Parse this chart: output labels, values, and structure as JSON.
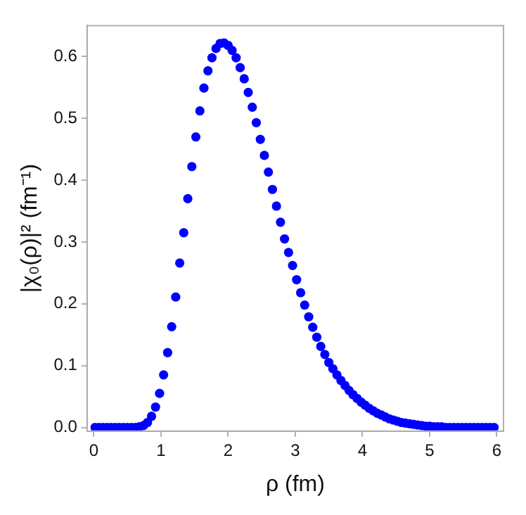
{
  "chart_data": {
    "type": "scatter",
    "xlabel": "ρ (fm)",
    "ylabel": "|χ₀(ρ)|² (fm⁻¹)",
    "xlim": [
      -0.1,
      6.1
    ],
    "xticks": [
      0,
      1,
      2,
      3,
      4,
      5,
      6
    ],
    "ylim": [
      -0.006,
      0.65
    ],
    "yticks": [
      {
        "value": 0,
        "label": "0.0"
      },
      0.1,
      0.2,
      0.3,
      0.4,
      0.5,
      0.6
    ],
    "grid": false,
    "legend": false,
    "marker": "circle",
    "series": [
      {
        "color": "#0000ff",
        "x": [
          0.02,
          0.08,
          0.14,
          0.2,
          0.26,
          0.32,
          0.38,
          0.44,
          0.5,
          0.56,
          0.62,
          0.68,
          0.74,
          0.8,
          0.86,
          0.92,
          0.98,
          1.04,
          1.1,
          1.16,
          1.22,
          1.28,
          1.34,
          1.4,
          1.46,
          1.52,
          1.58,
          1.64,
          1.7,
          1.76,
          1.82,
          1.88,
          1.94,
          2.0,
          2.06,
          2.12,
          2.18,
          2.24,
          2.3,
          2.36,
          2.42,
          2.48,
          2.54,
          2.6,
          2.66,
          2.72,
          2.78,
          2.84,
          2.9,
          2.96,
          3.02,
          3.08,
          3.14,
          3.2,
          3.26,
          3.32,
          3.38,
          3.44,
          3.5,
          3.56,
          3.62,
          3.68,
          3.74,
          3.8,
          3.86,
          3.92,
          3.98,
          4.04,
          4.1,
          4.16,
          4.22,
          4.28,
          4.34,
          4.4,
          4.46,
          4.52,
          4.58,
          4.64,
          4.7,
          4.76,
          4.82,
          4.88,
          4.94,
          5.0,
          5.06,
          5.12,
          5.18,
          5.24,
          5.3,
          5.36,
          5.42,
          5.48,
          5.54,
          5.6,
          5.66,
          5.72,
          5.78,
          5.84,
          5.9,
          5.96
        ],
        "values": [
          0,
          0,
          0,
          0,
          0,
          0,
          0,
          0,
          0,
          0,
          0,
          0.001,
          0.003,
          0.008,
          0.018,
          0.033,
          0.055,
          0.085,
          0.121,
          0.163,
          0.211,
          0.266,
          0.315,
          0.37,
          0.422,
          0.47,
          0.512,
          0.549,
          0.577,
          0.598,
          0.613,
          0.621,
          0.622,
          0.618,
          0.61,
          0.598,
          0.582,
          0.564,
          0.542,
          0.518,
          0.493,
          0.466,
          0.44,
          0.413,
          0.385,
          0.358,
          0.332,
          0.305,
          0.283,
          0.262,
          0.239,
          0.218,
          0.198,
          0.179,
          0.162,
          0.146,
          0.131,
          0.118,
          0.105,
          0.095,
          0.085,
          0.076,
          0.068,
          0.06,
          0.053,
          0.047,
          0.041,
          0.036,
          0.031,
          0.027,
          0.023,
          0.02,
          0.017,
          0.014,
          0.012,
          0.01,
          0.008,
          0.007,
          0.006,
          0.005,
          0.004,
          0.003,
          0.002,
          0.002,
          0.001,
          0.001,
          0.001,
          0,
          0,
          0,
          0,
          0,
          0,
          0,
          0,
          0,
          0,
          0,
          0,
          0
        ]
      }
    ]
  }
}
